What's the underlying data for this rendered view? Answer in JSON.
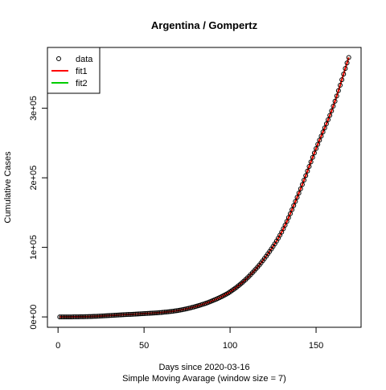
{
  "chart_data": {
    "type": "scatter",
    "title": "Argentina / Gompertz",
    "xlabel": "Days since 2020-03-16",
    "xsublabel": "Simple Moving Avarage (window size = 7)",
    "ylabel": "Cumulative Cases",
    "xlim": [
      -6.16,
      176.16
    ],
    "ylim": [
      -14900,
      387400
    ],
    "x_ticks": [
      0,
      50,
      100,
      150
    ],
    "x_tick_labels": [
      "0",
      "50",
      "100",
      "150"
    ],
    "y_ticks": [
      0,
      100000,
      200000,
      300000
    ],
    "y_tick_labels": [
      "0e+00",
      "1e+05",
      "2e+05",
      "3e+05"
    ],
    "grid": false,
    "legend_position": "top-left",
    "series": [
      {
        "name": "data",
        "kind": "points",
        "color": "#000000",
        "x_range": [
          1,
          169
        ],
        "values": [
          [
            1,
            0
          ],
          [
            10,
            100
          ],
          [
            20,
            700
          ],
          [
            30,
            2000
          ],
          [
            40,
            3400
          ],
          [
            50,
            4700
          ],
          [
            60,
            6400
          ],
          [
            70,
            9400
          ],
          [
            80,
            15000
          ],
          [
            90,
            23500
          ],
          [
            100,
            36000
          ],
          [
            110,
            56000
          ],
          [
            120,
            84000
          ],
          [
            130,
            122000
          ],
          [
            140,
            178000
          ],
          [
            150,
            242000
          ],
          [
            160,
            303000
          ],
          [
            169,
            373000
          ]
        ]
      },
      {
        "name": "fit1",
        "kind": "line",
        "color": "#ff0000",
        "x_range": [
          1,
          169
        ]
      },
      {
        "name": "fit2",
        "kind": "line",
        "color": "#00cd00",
        "x_range": [
          1,
          169
        ]
      }
    ]
  }
}
